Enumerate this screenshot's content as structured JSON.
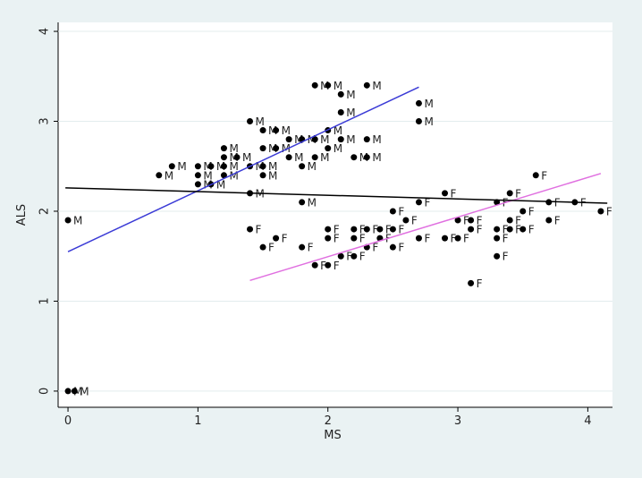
{
  "chart_data": {
    "type": "scatter",
    "x_label": "MS",
    "y_label": "ALS",
    "xlim": [
      -0.076,
      4.19
    ],
    "ylim": [
      -0.18,
      4.1
    ],
    "xticks": [
      0,
      1,
      2,
      3,
      4
    ],
    "yticks": [
      0,
      1,
      2,
      3,
      4
    ],
    "grid": true,
    "series": [
      {
        "name": "M",
        "color": "#000000",
        "x": [
          0,
          0,
          0.05,
          0.7,
          0.8,
          1,
          1,
          1,
          1.1,
          1.1,
          1.2,
          1.2,
          1.2,
          1.2,
          1.3,
          1.4,
          1.4,
          1.4,
          1.5,
          1.5,
          1.5,
          1.5,
          1.6,
          1.6,
          1.7,
          1.7,
          1.8,
          1.8,
          1.8,
          1.9,
          1.9,
          1.9,
          2,
          2,
          2,
          2.1,
          2.1,
          2.1,
          2.2,
          2.3,
          2.3,
          2.3,
          2.7,
          2.7
        ],
        "values": [
          1.9,
          0,
          0,
          2.4,
          2.5,
          2.5,
          2.4,
          2.3,
          2.5,
          2.3,
          2.7,
          2.6,
          2.5,
          2.4,
          2.6,
          3.0,
          2.5,
          2.2,
          2.9,
          2.7,
          2.5,
          2.4,
          2.9,
          2.7,
          2.8,
          2.6,
          2.8,
          2.5,
          2.1,
          3.4,
          2.8,
          2.6,
          3.4,
          2.9,
          2.7,
          3.3,
          3.1,
          2.8,
          2.6,
          3.4,
          2.8,
          2.6,
          3.2,
          3.0
        ]
      },
      {
        "name": "F",
        "color": "#000000",
        "x": [
          1.4,
          1.5,
          1.6,
          1.8,
          1.9,
          2,
          2,
          2,
          2.1,
          2.2,
          2.2,
          2.2,
          2.3,
          2.3,
          2.4,
          2.4,
          2.5,
          2.5,
          2.5,
          2.6,
          2.7,
          2.7,
          2.9,
          2.9,
          3,
          3,
          3.1,
          3.1,
          3.1,
          3.3,
          3.3,
          3.3,
          3.3,
          3.4,
          3.4,
          3.4,
          3.5,
          3.5,
          3.6,
          3.7,
          3.7,
          3.9,
          4.1
        ],
        "values": [
          1.8,
          1.6,
          1.7,
          1.6,
          1.4,
          1.8,
          1.7,
          1.4,
          1.5,
          1.8,
          1.7,
          1.5,
          1.8,
          1.6,
          1.8,
          1.7,
          2.0,
          1.8,
          1.6,
          1.9,
          2.1,
          1.7,
          2.2,
          1.7,
          1.9,
          1.7,
          1.9,
          1.8,
          1.2,
          2.1,
          1.8,
          1.7,
          1.5,
          2.2,
          1.9,
          1.8,
          2.0,
          1.8,
          2.4,
          2.1,
          1.9,
          2.1,
          2.0
        ]
      }
    ],
    "fit_lines": [
      {
        "color": "#3b3bd6",
        "x": [
          0,
          2.7
        ],
        "values": [
          1.55,
          3.38
        ]
      },
      {
        "color": "#e070e0",
        "x": [
          1.4,
          4.1
        ],
        "values": [
          1.23,
          2.42
        ]
      },
      {
        "color": "#000000",
        "x": [
          -0.02,
          4.15
        ],
        "values": [
          2.26,
          2.09
        ]
      }
    ]
  }
}
